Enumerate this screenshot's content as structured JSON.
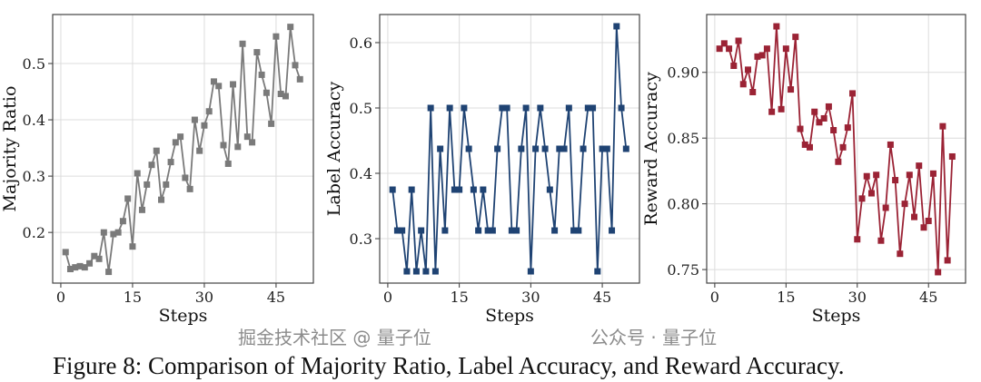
{
  "caption": "Figure 8: Comparison of Majority Ratio, Label Accuracy, and Reward Accuracy.",
  "watermark": {
    "line1": "公众号 · 量子位",
    "line2": "掘金技术社区 @ 量子位"
  },
  "chart_data": [
    {
      "type": "line",
      "xlabel": "Steps",
      "ylabel": "Majority Ratio",
      "color": "#7a7a7a",
      "xticks": [
        0,
        15,
        30,
        45
      ],
      "yticks": [
        0.2,
        0.3,
        0.4,
        0.5
      ],
      "ytick_labels": [
        "0.2",
        "0.3",
        "0.4",
        "0.5"
      ],
      "xlim": [
        -1.7,
        52.8
      ],
      "ylim": [
        0.11,
        0.587
      ],
      "grid": true,
      "x": [
        1,
        2,
        3,
        4,
        5,
        6,
        7,
        8,
        9,
        10,
        11,
        12,
        13,
        14,
        15,
        16,
        17,
        18,
        19,
        20,
        21,
        22,
        23,
        24,
        25,
        26,
        27,
        28,
        29,
        30,
        31,
        32,
        33,
        34,
        35,
        36,
        37,
        38,
        39,
        40,
        41,
        42,
        43,
        44,
        45,
        46,
        47,
        48,
        49,
        50
      ],
      "y": [
        0.165,
        0.135,
        0.138,
        0.14,
        0.138,
        0.145,
        0.158,
        0.153,
        0.2,
        0.13,
        0.197,
        0.2,
        0.22,
        0.26,
        0.175,
        0.305,
        0.24,
        0.285,
        0.32,
        0.345,
        0.258,
        0.285,
        0.325,
        0.36,
        0.37,
        0.297,
        0.277,
        0.4,
        0.345,
        0.39,
        0.415,
        0.468,
        0.46,
        0.355,
        0.322,
        0.463,
        0.352,
        0.535,
        0.37,
        0.36,
        0.52,
        0.48,
        0.448,
        0.393,
        0.548,
        0.446,
        0.442,
        0.565,
        0.497,
        0.472
      ]
    },
    {
      "type": "line",
      "xlabel": "Steps",
      "ylabel": "Label Accuracy",
      "color": "#1f4373",
      "xticks": [
        0,
        15,
        30,
        45
      ],
      "yticks": [
        0.3,
        0.4,
        0.5,
        0.6
      ],
      "ytick_labels": [
        "0.3",
        "0.4",
        "0.5",
        "0.6"
      ],
      "xlim": [
        -1.7,
        52.8
      ],
      "ylim": [
        0.232,
        0.643
      ],
      "grid": true,
      "x": [
        1,
        2,
        3,
        4,
        5,
        6,
        7,
        8,
        9,
        10,
        11,
        12,
        13,
        14,
        15,
        16,
        17,
        18,
        19,
        20,
        21,
        22,
        23,
        24,
        25,
        26,
        27,
        28,
        29,
        30,
        31,
        32,
        33,
        34,
        35,
        36,
        37,
        38,
        39,
        40,
        41,
        42,
        43,
        44,
        45,
        46,
        47,
        48,
        49,
        50
      ],
      "y": [
        0.375,
        0.3125,
        0.3125,
        0.25,
        0.375,
        0.25,
        0.3125,
        0.25,
        0.5,
        0.25,
        0.4375,
        0.3125,
        0.5,
        0.375,
        0.375,
        0.5,
        0.4375,
        0.375,
        0.3125,
        0.375,
        0.3125,
        0.3125,
        0.4375,
        0.5,
        0.5,
        0.3125,
        0.3125,
        0.4375,
        0.5,
        0.25,
        0.4375,
        0.5,
        0.4375,
        0.375,
        0.3125,
        0.4375,
        0.4375,
        0.5,
        0.3125,
        0.3125,
        0.4375,
        0.5,
        0.5,
        0.25,
        0.4375,
        0.4375,
        0.3125,
        0.625,
        0.5,
        0.4375
      ]
    },
    {
      "type": "line",
      "xlabel": "Steps",
      "ylabel": "Reward Accuracy",
      "color": "#9b2335",
      "xticks": [
        0,
        15,
        30,
        45
      ],
      "yticks": [
        0.75,
        0.8,
        0.85,
        0.9
      ],
      "ytick_labels": [
        "0.75",
        "0.80",
        "0.85",
        "0.90"
      ],
      "xlim": [
        -1.7,
        52.8
      ],
      "ylim": [
        0.7397,
        0.944
      ],
      "grid": true,
      "x": [
        1,
        2,
        3,
        4,
        5,
        6,
        7,
        8,
        9,
        10,
        11,
        12,
        13,
        14,
        15,
        16,
        17,
        18,
        19,
        20,
        21,
        22,
        23,
        24,
        25,
        26,
        27,
        28,
        29,
        30,
        31,
        32,
        33,
        34,
        35,
        36,
        37,
        38,
        39,
        40,
        41,
        42,
        43,
        44,
        45,
        46,
        47,
        48,
        49,
        50
      ],
      "y": [
        0.918,
        0.922,
        0.918,
        0.905,
        0.924,
        0.891,
        0.902,
        0.885,
        0.912,
        0.913,
        0.918,
        0.87,
        0.935,
        0.872,
        0.918,
        0.887,
        0.927,
        0.857,
        0.845,
        0.843,
        0.87,
        0.862,
        0.865,
        0.874,
        0.856,
        0.832,
        0.843,
        0.858,
        0.884,
        0.773,
        0.804,
        0.821,
        0.808,
        0.822,
        0.772,
        0.797,
        0.845,
        0.818,
        0.762,
        0.8,
        0.822,
        0.79,
        0.829,
        0.782,
        0.787,
        0.823,
        0.748,
        0.859,
        0.757,
        0.836
      ]
    }
  ]
}
